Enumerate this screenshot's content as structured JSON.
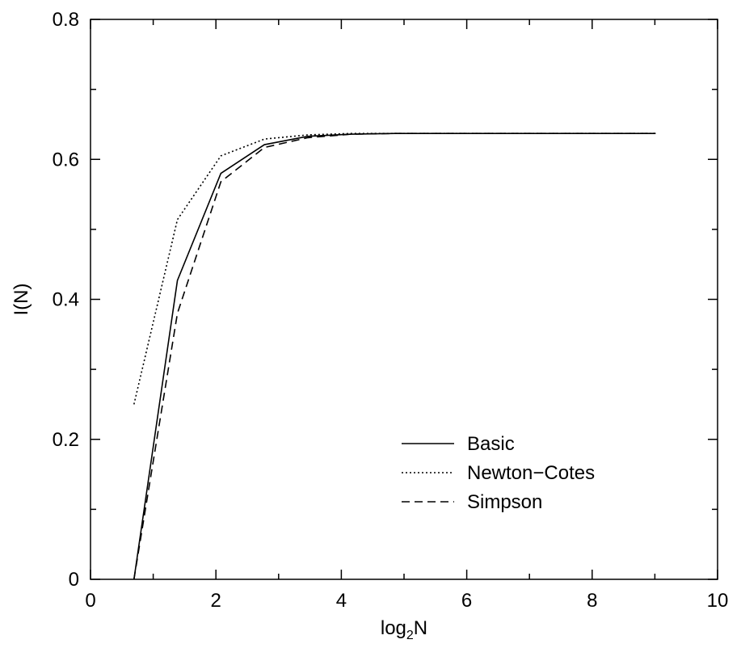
{
  "chart_data": {
    "type": "line",
    "title": "",
    "xlabel_main": "log",
    "xlabel_sub": "2",
    "xlabel_tail": "N",
    "ylabel": "I(N)",
    "xlim": [
      0,
      10
    ],
    "ylim": [
      0,
      0.8
    ],
    "x_ticks": [
      0,
      2,
      4,
      6,
      8,
      10
    ],
    "x_tick_labels": [
      "0",
      "2",
      "4",
      "6",
      "8",
      "10"
    ],
    "y_ticks": [
      0,
      0.2,
      0.4,
      0.6,
      0.8
    ],
    "y_tick_labels": [
      "0",
      "0.2",
      "0.4",
      "0.6",
      "0.8"
    ],
    "x_minor_ticks": [
      1,
      3,
      5,
      7,
      9
    ],
    "y_minor_ticks": [
      0.1,
      0.3,
      0.5,
      0.7
    ],
    "grid": false,
    "legend_position": "lower-right",
    "series": [
      {
        "name": "Basic",
        "style": "solid",
        "x": [
          0.693,
          1.386,
          2.079,
          2.773,
          3.466,
          4.159,
          4.852,
          5.545,
          6.238,
          6.931,
          7.625,
          8.318,
          9.011
        ],
        "y": [
          0.0,
          0.427,
          0.58,
          0.621,
          0.633,
          0.636,
          0.637,
          0.637,
          0.637,
          0.637,
          0.637,
          0.637,
          0.637
        ]
      },
      {
        "name": "Newton−Cotes",
        "style": "dotted",
        "x": [
          0.693,
          1.386,
          2.079,
          2.773,
          3.466,
          4.159,
          4.852,
          5.545,
          6.238,
          6.931,
          7.625,
          8.318,
          9.011
        ],
        "y": [
          0.25,
          0.514,
          0.605,
          0.629,
          0.635,
          0.637,
          0.637,
          0.637,
          0.637,
          0.637,
          0.637,
          0.637,
          0.637
        ]
      },
      {
        "name": "Simpson",
        "style": "dashed",
        "x": [
          0.693,
          1.386,
          2.079,
          2.773,
          3.466,
          4.159,
          4.852,
          5.545,
          6.238,
          6.931,
          7.625,
          8.318,
          9.011
        ],
        "y": [
          0.0,
          0.38,
          0.568,
          0.617,
          0.631,
          0.636,
          0.637,
          0.637,
          0.637,
          0.637,
          0.637,
          0.637,
          0.637
        ]
      }
    ]
  }
}
